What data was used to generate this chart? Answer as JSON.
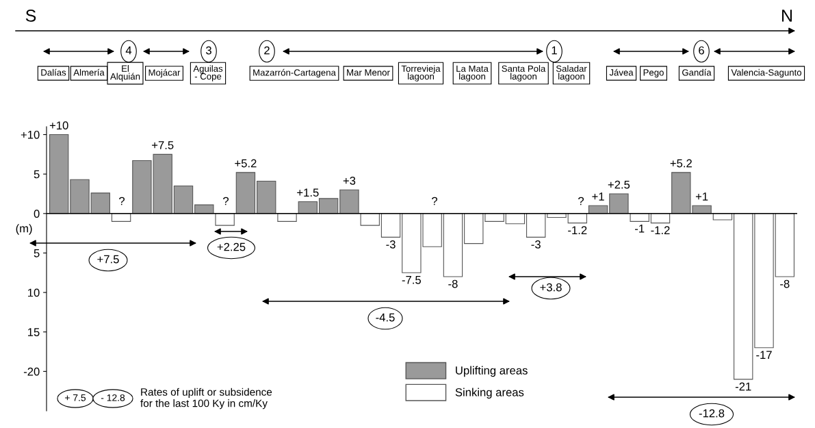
{
  "chart_data": {
    "type": "bar",
    "ylabel": "(m)",
    "categories": [
      null,
      null,
      null,
      null,
      null,
      null,
      null,
      null,
      null,
      null,
      null,
      null,
      null,
      null,
      null,
      null,
      null,
      null,
      null,
      null,
      null,
      null,
      null,
      null,
      null,
      null,
      null,
      null,
      null,
      null,
      null,
      null,
      null,
      null,
      null,
      null
    ],
    "series": [
      {
        "name": "Uplifting areas",
        "color": "#9a9a9a",
        "values": [
          10,
          4.3,
          2.6,
          null,
          6.7,
          7.5,
          3.5,
          1.1,
          null,
          5.2,
          4.1,
          null,
          1.5,
          1.9,
          3,
          null,
          null,
          null,
          null,
          null,
          null,
          null,
          null,
          null,
          null,
          null,
          1,
          2.5,
          null,
          null,
          5.2,
          1,
          null,
          null,
          null,
          null
        ],
        "value_labels": [
          "+10",
          null,
          null,
          null,
          null,
          "+7.5",
          null,
          null,
          null,
          "+5.2",
          null,
          null,
          "+1.5",
          null,
          "+3",
          null,
          null,
          null,
          null,
          null,
          null,
          null,
          null,
          null,
          null,
          null,
          "+1",
          "+2.5",
          null,
          null,
          "+5.2",
          "+1",
          null,
          null,
          null,
          null
        ]
      },
      {
        "name": "Sinking areas",
        "color": "#ffffff",
        "values": [
          null,
          null,
          null,
          -1,
          null,
          null,
          null,
          null,
          -1.5,
          null,
          null,
          -1,
          null,
          null,
          null,
          -1.5,
          -3,
          -7.5,
          -4.2,
          -8,
          -3.8,
          -1,
          -1.3,
          -3,
          -0.5,
          -1.2,
          null,
          null,
          -1,
          -1.2,
          null,
          null,
          -0.8,
          -21,
          -17,
          -8
        ],
        "value_labels": [
          null,
          null,
          null,
          null,
          null,
          null,
          null,
          null,
          null,
          null,
          null,
          null,
          null,
          null,
          null,
          null,
          "-3",
          "-7.5",
          null,
          "-8",
          null,
          null,
          null,
          "-3",
          null,
          "-1.2",
          null,
          null,
          "-1",
          "-1.2",
          null,
          null,
          null,
          "-21",
          "-17",
          "-8"
        ]
      }
    ],
    "ylim": [
      -25,
      11
    ],
    "yticks": [
      {
        "value": 10,
        "label": "+10"
      },
      5,
      0,
      {
        "value": -5,
        "label": "5"
      },
      {
        "value": -10,
        "label": "10"
      },
      {
        "value": -15,
        "label": "15"
      },
      -20
    ],
    "ref_lines": [
      {
        "axis": "y",
        "value": 0
      }
    ],
    "legend": "bottom",
    "grid": false,
    "annotations": [
      "S",
      "N",
      "4",
      "3",
      "2",
      "1",
      "6",
      "Dalías",
      "Almería",
      "El\nAlquián",
      "Mojácar",
      "Aguilas\n- Cope",
      "Mazarrón-Cartagena",
      "Mar Menor",
      "Torrevieja\nlagoon",
      "La Mata\nlagoon",
      "Santa Pola\nlagoon",
      "Saladar\nlagoon",
      "Jávea",
      "Pego",
      "Gandía",
      "Valencia-Sagunto",
      "?",
      "?",
      "?",
      "?",
      "+7.5",
      "+2.25",
      "-4.5",
      "+3.8",
      "-12.8",
      "+ 7.5",
      "- 12.8",
      "Rates of uplift or subsidence\nfor the last 100 Ky in cm/Ky"
    ]
  }
}
